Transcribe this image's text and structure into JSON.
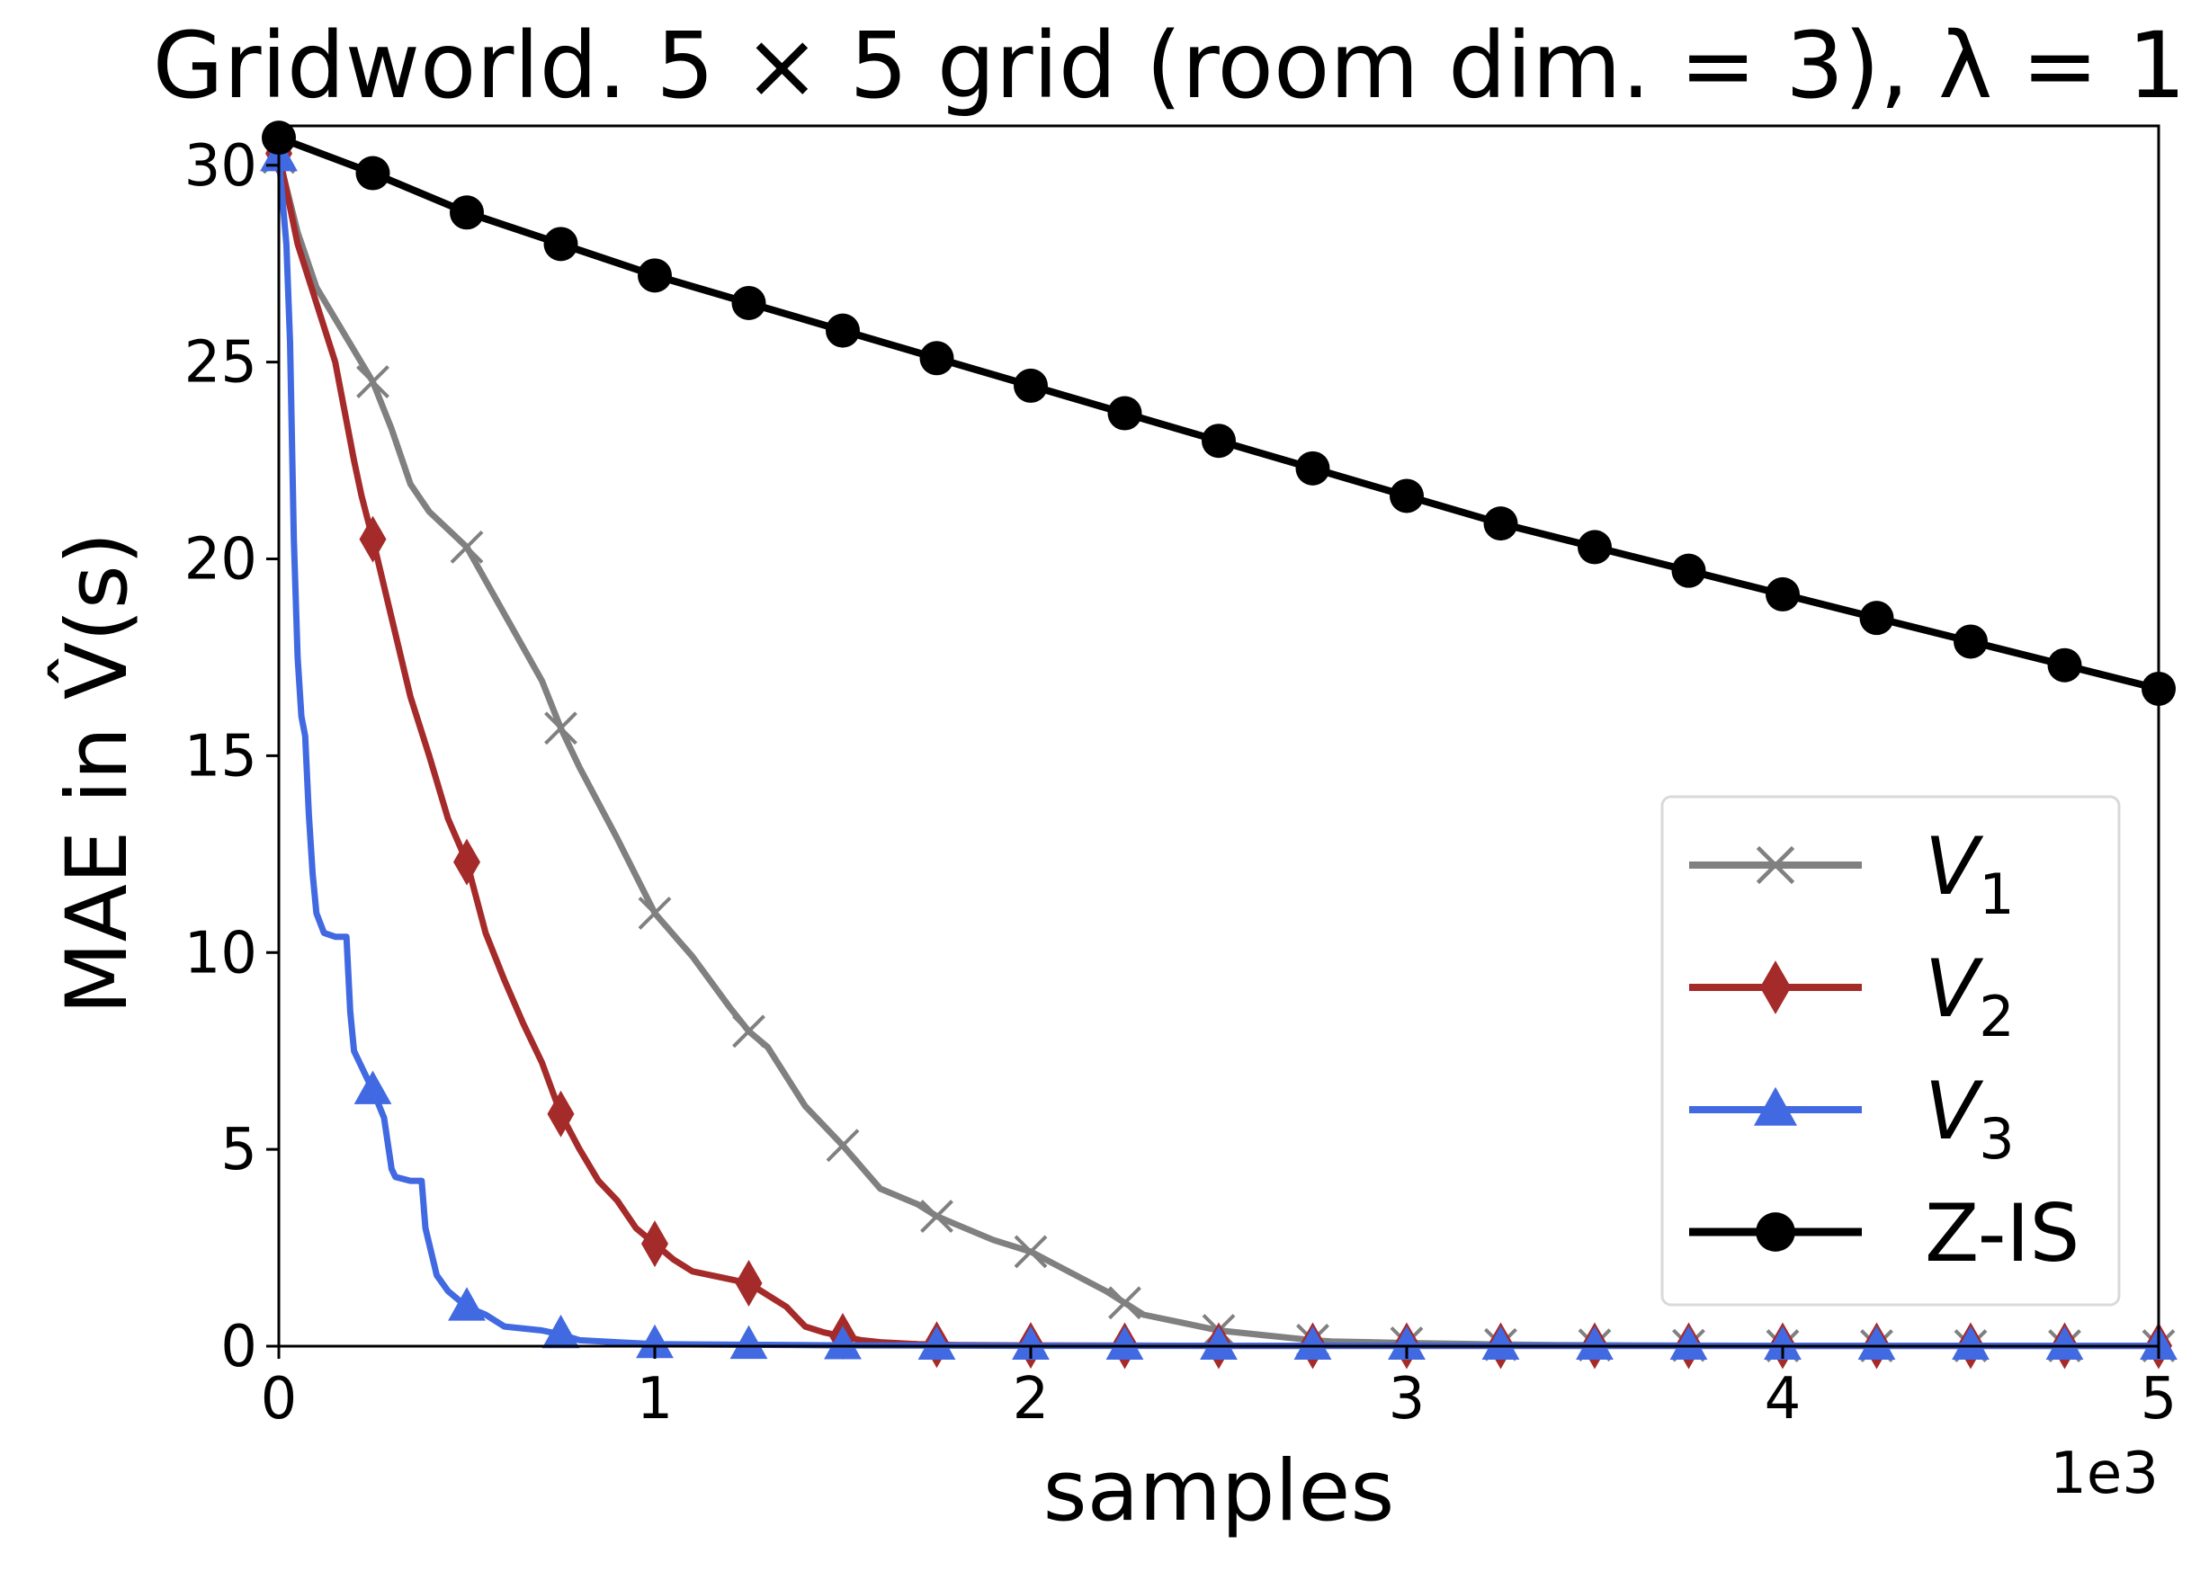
{
  "chart_data": {
    "type": "line",
    "title": "Gridworld. 5 × 5 grid (room dim. = 3), λ = 1",
    "xlabel": "samples",
    "ylabel": "MAE in V̂(s)",
    "x_offset_label": "1e3",
    "xlim": [
      0,
      5
    ],
    "ylim": [
      0,
      31
    ],
    "x_ticks": [
      "0",
      "1",
      "2",
      "3",
      "4",
      "5"
    ],
    "y_ticks": [
      "0",
      "5",
      "10",
      "15",
      "20",
      "25",
      "30"
    ],
    "grid": false,
    "legend_position": "lower-right",
    "series": [
      {
        "name": "V_1",
        "legend_main": "V",
        "legend_sub": "1",
        "color": "#808080",
        "marker": "x",
        "x": [
          0,
          0.05,
          0.1,
          0.2,
          0.25,
          0.3,
          0.35,
          0.4,
          0.5,
          0.6,
          0.7,
          0.75,
          0.8,
          0.9,
          1.0,
          1.1,
          1.2,
          1.25,
          1.3,
          1.4,
          1.5,
          1.6,
          1.7,
          1.75,
          1.8,
          1.9,
          2.0,
          2.1,
          2.2,
          2.25,
          2.3,
          2.4,
          2.5,
          2.6,
          2.7,
          2.75,
          2.8,
          3.0,
          3.2,
          3.4,
          3.6,
          4.0,
          4.5,
          5.0
        ],
        "y": [
          30.2,
          28.3,
          26.9,
          25.3,
          24.5,
          23.3,
          21.9,
          21.2,
          20.3,
          18.6,
          16.9,
          15.7,
          14.7,
          12.9,
          11.0,
          9.9,
          8.6,
          8.0,
          7.6,
          6.1,
          5.1,
          4.0,
          3.6,
          3.3,
          3.1,
          2.7,
          2.4,
          1.9,
          1.4,
          1.1,
          0.8,
          0.6,
          0.4,
          0.3,
          0.2,
          0.15,
          0.12,
          0.08,
          0.05,
          0.03,
          0.02,
          0.01,
          0.01,
          0.01
        ],
        "marker_x": [
          0,
          0.25,
          0.5,
          0.75,
          1.0,
          1.25,
          1.5,
          1.75,
          2.0,
          2.25,
          2.5,
          2.75,
          3.0,
          3.25,
          3.5,
          3.75,
          4.0,
          4.25,
          4.5,
          4.75,
          5.0
        ],
        "marker_y": [
          30.2,
          24.5,
          20.3,
          15.7,
          11.0,
          8.0,
          5.1,
          3.3,
          2.4,
          1.1,
          0.4,
          0.15,
          0.08,
          0.04,
          0.03,
          0.02,
          0.01,
          0.01,
          0.01,
          0.01,
          0.01
        ]
      },
      {
        "name": "V_2",
        "legend_main": "V",
        "legend_sub": "2",
        "color": "#a52a2a",
        "marker": "diamond",
        "x": [
          0,
          0.05,
          0.1,
          0.15,
          0.2,
          0.22,
          0.25,
          0.3,
          0.35,
          0.4,
          0.45,
          0.5,
          0.55,
          0.6,
          0.65,
          0.7,
          0.75,
          0.8,
          0.85,
          0.9,
          0.95,
          1.0,
          1.05,
          1.1,
          1.15,
          1.2,
          1.25,
          1.3,
          1.35,
          1.4,
          1.45,
          1.5,
          1.55,
          1.6,
          1.7,
          1.8,
          2.0,
          2.5,
          3.0,
          4.0,
          5.0
        ],
        "y": [
          30.3,
          28.0,
          26.5,
          25.0,
          22.5,
          21.6,
          20.5,
          18.5,
          16.5,
          15.0,
          13.4,
          12.3,
          10.5,
          9.3,
          8.2,
          7.2,
          5.9,
          5.0,
          4.2,
          3.7,
          3.0,
          2.6,
          2.2,
          1.9,
          1.8,
          1.7,
          1.6,
          1.3,
          1.0,
          0.5,
          0.35,
          0.25,
          0.15,
          0.1,
          0.05,
          0.03,
          0.02,
          0.01,
          0.01,
          0.01,
          0.01
        ],
        "marker_x": [
          0,
          0.25,
          0.5,
          0.75,
          1.0,
          1.25,
          1.5,
          1.75,
          2.0,
          2.25,
          2.5,
          2.75,
          3.0,
          3.25,
          3.5,
          3.75,
          4.0,
          4.25,
          4.5,
          4.75,
          5.0
        ],
        "marker_y": [
          30.3,
          20.5,
          12.3,
          5.9,
          2.6,
          1.6,
          0.25,
          0.04,
          0.02,
          0.01,
          0.01,
          0.01,
          0.01,
          0.01,
          0.01,
          0.01,
          0.01,
          0.01,
          0.01,
          0.01,
          0.01
        ]
      },
      {
        "name": "V_3",
        "legend_main": "V",
        "legend_sub": "3",
        "color": "#4169e1",
        "marker": "triangle",
        "x": [
          0,
          0.02,
          0.03,
          0.04,
          0.05,
          0.06,
          0.07,
          0.08,
          0.09,
          0.1,
          0.12,
          0.15,
          0.18,
          0.19,
          0.2,
          0.25,
          0.28,
          0.3,
          0.31,
          0.35,
          0.38,
          0.39,
          0.42,
          0.45,
          0.5,
          0.55,
          0.6,
          0.7,
          0.75,
          0.8,
          0.9,
          1.0,
          1.5,
          2.0,
          3.0,
          4.0,
          5.0
        ],
        "y": [
          30.2,
          28.0,
          25.5,
          20.5,
          17.5,
          16.0,
          15.5,
          13.5,
          12.0,
          11.0,
          10.5,
          10.4,
          10.4,
          8.5,
          7.5,
          6.5,
          5.8,
          4.5,
          4.3,
          4.2,
          4.2,
          3.0,
          1.8,
          1.4,
          1.0,
          0.8,
          0.5,
          0.4,
          0.3,
          0.15,
          0.1,
          0.05,
          0.02,
          0.01,
          0.01,
          0.01,
          0.01
        ],
        "marker_x": [
          0,
          0.25,
          0.5,
          0.75,
          1.0,
          1.25,
          1.5,
          1.75,
          2.0,
          2.25,
          2.5,
          2.75,
          3.0,
          3.25,
          3.5,
          3.75,
          4.0,
          4.25,
          4.5,
          4.75,
          5.0
        ],
        "marker_y": [
          30.2,
          6.5,
          1.0,
          0.3,
          0.05,
          0.03,
          0.02,
          0.01,
          0.01,
          0.01,
          0.01,
          0.01,
          0.01,
          0.01,
          0.01,
          0.01,
          0.01,
          0.01,
          0.01,
          0.01,
          0.01
        ]
      },
      {
        "name": "Z-IS",
        "legend_main": "Z-IS",
        "legend_sub": "",
        "color": "#000000",
        "marker": "circle",
        "x": [
          0,
          0.25,
          0.5,
          0.75,
          1.0,
          1.25,
          1.5,
          1.75,
          2.0,
          2.25,
          2.5,
          2.75,
          3.0,
          3.25,
          3.5,
          3.75,
          4.0,
          4.25,
          4.5,
          4.75,
          5.0
        ],
        "y": [
          30.7,
          29.8,
          28.8,
          28.0,
          27.2,
          26.5,
          25.8,
          25.1,
          24.4,
          23.7,
          23.0,
          22.3,
          21.6,
          20.9,
          20.3,
          19.7,
          19.1,
          18.5,
          17.9,
          17.3,
          16.7
        ],
        "marker_x": [
          0,
          0.25,
          0.5,
          0.75,
          1.0,
          1.25,
          1.5,
          1.75,
          2.0,
          2.25,
          2.5,
          2.75,
          3.0,
          3.25,
          3.5,
          3.75,
          4.0,
          4.25,
          4.5,
          4.75,
          5.0
        ],
        "marker_y": [
          30.7,
          29.8,
          28.8,
          28.0,
          27.2,
          26.5,
          25.8,
          25.1,
          24.4,
          23.7,
          23.0,
          22.3,
          21.6,
          20.9,
          20.3,
          19.7,
          19.1,
          18.5,
          17.9,
          17.3,
          16.7
        ]
      }
    ]
  }
}
